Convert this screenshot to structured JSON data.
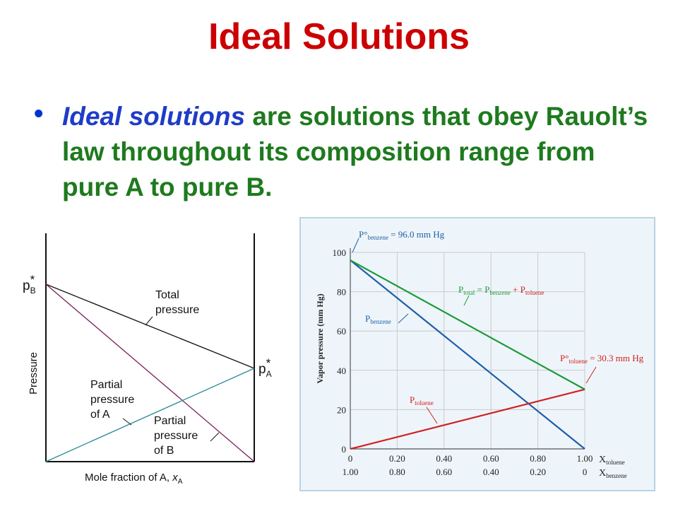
{
  "slide": {
    "title": "Ideal Solutions",
    "bullet_term": "Ideal solutions",
    "bullet_text": " are solutions that obey Rauolt’s law throughout its composition range from pure A to pure B."
  },
  "left_diagram": {
    "y_label": "Pressure",
    "x_label": "Mole fraction of A, ",
    "x_label_var": "x",
    "x_label_sub": "A",
    "pB_label": "p",
    "pB_sup": "*",
    "pB_sub": "B",
    "pA_label": "p",
    "pA_sup": "*",
    "pA_sub": "A",
    "total_label_1": "Total",
    "total_label_2": "pressure",
    "partialA_1": "Partial",
    "partialA_2": "pressure",
    "partialA_3": "of A",
    "partialB_1": "Partial",
    "partialB_2": "pressure",
    "partialB_3": "of B",
    "colors": {
      "total": "#111111",
      "partialA": "#2a8a9a",
      "partialB": "#7a1f5a"
    }
  },
  "chart_data": {
    "type": "line",
    "ylabel": "Vapor pressure (mm Hg)",
    "ylim": [
      0,
      100
    ],
    "y_ticks": [
      "0",
      "20",
      "40",
      "60",
      "80",
      "100"
    ],
    "x_ticks_toluene": [
      "0",
      "0.20",
      "0.40",
      "0.60",
      "0.80",
      "1.00"
    ],
    "x_ticks_benzene": [
      "1.00",
      "0.80",
      "0.60",
      "0.40",
      "0.20",
      "0"
    ],
    "x_axis_toluene_label": "X",
    "x_axis_toluene_sub": "toluene",
    "x_axis_benzene_label": "X",
    "x_axis_benzene_sub": "benzene",
    "x": [
      0,
      1
    ],
    "series": [
      {
        "name": "P_benzene",
        "values": [
          96.0,
          0
        ],
        "color": "#1f5fa8"
      },
      {
        "name": "P_toluene",
        "values": [
          0,
          30.3
        ],
        "color": "#d42020"
      },
      {
        "name": "P_total",
        "values": [
          96.0,
          30.3
        ],
        "color": "#1e9a3a"
      }
    ],
    "annotations": {
      "p0_benzene_P": "P°",
      "p0_benzene_sub": "benzene",
      "p0_benzene_val": " = 96.0 mm Hg",
      "p0_toluene_P": "P°",
      "p0_toluene_sub": "toluene",
      "p0_toluene_val": " = 30.3 mm Hg",
      "pbenzene_P": "P",
      "pbenzene_sub": "benzene",
      "ptoluene_P": "P",
      "ptoluene_sub": "toluene",
      "ptotal_P": "P",
      "ptotal_sub": "total",
      "ptotal_eq": " = ",
      "ptotal_b_P": "P",
      "ptotal_b_sub": "benzene",
      "ptotal_plus": " + ",
      "ptotal_t_P": "P",
      "ptotal_t_sub": "toluene"
    },
    "grid": true
  }
}
